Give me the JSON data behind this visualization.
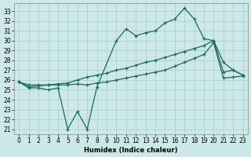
{
  "title": "",
  "xlabel": "Humidex (Indice chaleur)",
  "ylabel": "",
  "bg_color": "#cce8e8",
  "grid_color": "#aacccc",
  "line_color": "#1a6b5a",
  "xlim": [
    -0.5,
    23.5
  ],
  "ylim": [
    20.5,
    33.8
  ],
  "xticks": [
    0,
    1,
    2,
    3,
    4,
    5,
    6,
    7,
    8,
    9,
    10,
    11,
    12,
    13,
    14,
    15,
    16,
    17,
    18,
    19,
    20,
    21,
    22,
    23
  ],
  "yticks": [
    21,
    22,
    23,
    24,
    25,
    26,
    27,
    28,
    29,
    30,
    31,
    32,
    33
  ],
  "line1_x": [
    0,
    1,
    2,
    3,
    4,
    5,
    6,
    7,
    8,
    10,
    11,
    12,
    13,
    14,
    15,
    16,
    17,
    18,
    19,
    20,
    21,
    22,
    23
  ],
  "line1_y": [
    25.8,
    25.2,
    25.2,
    25.0,
    25.2,
    21.0,
    22.8,
    21.0,
    25.3,
    30.0,
    31.2,
    30.5,
    30.8,
    31.0,
    31.8,
    32.2,
    33.3,
    32.2,
    30.2,
    30.0,
    27.8,
    27.0,
    26.5
  ],
  "line2_x": [
    0,
    1,
    2,
    3,
    4,
    5,
    6,
    7,
    8,
    9,
    10,
    11,
    12,
    13,
    14,
    15,
    16,
    17,
    18,
    19,
    20,
    21,
    22,
    23
  ],
  "line2_y": [
    25.8,
    25.5,
    25.5,
    25.5,
    25.5,
    25.5,
    25.6,
    25.5,
    25.7,
    25.8,
    26.0,
    26.2,
    26.4,
    26.6,
    26.8,
    27.0,
    27.4,
    27.8,
    28.2,
    28.6,
    29.8,
    26.2,
    26.3,
    26.4
  ],
  "line3_x": [
    0,
    1,
    2,
    3,
    4,
    5,
    6,
    7,
    8,
    9,
    10,
    11,
    12,
    13,
    14,
    15,
    16,
    17,
    18,
    19,
    20,
    21,
    22,
    23
  ],
  "line3_y": [
    25.8,
    25.3,
    25.4,
    25.5,
    25.6,
    25.7,
    26.0,
    26.3,
    26.5,
    26.7,
    27.0,
    27.2,
    27.5,
    27.8,
    28.0,
    28.3,
    28.6,
    28.9,
    29.2,
    29.5,
    30.0,
    26.8,
    27.0,
    26.5
  ]
}
